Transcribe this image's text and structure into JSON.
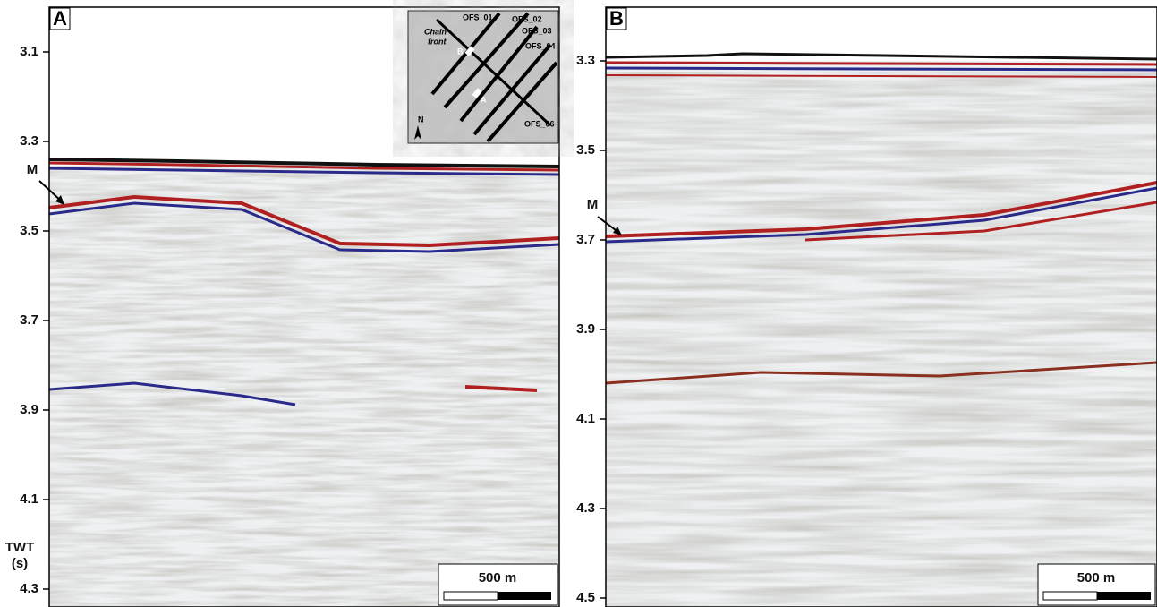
{
  "panels": [
    {
      "label": "A",
      "ylim": [
        3.0,
        4.34
      ],
      "yticks": [
        3.1,
        3.3,
        3.5,
        3.7,
        3.9,
        4.1,
        4.3
      ],
      "axis_title": {
        "name": "TWT",
        "unit": "(s)"
      },
      "annotation": "M",
      "scale_bar": "500 m",
      "inset": {
        "lines": [
          "OFS_01",
          "OFS_02",
          "OFS_03",
          "OFS_04",
          "OFS_06"
        ],
        "place": [
          "Chain",
          "front"
        ],
        "sites": [
          "B",
          "A"
        ],
        "north": "N"
      }
    },
    {
      "label": "B",
      "ylim": [
        3.18,
        4.52
      ],
      "yticks": [
        3.3,
        3.5,
        3.7,
        3.9,
        4.1,
        4.3,
        4.5
      ],
      "annotation": "M",
      "scale_bar": "500 m"
    }
  ]
}
